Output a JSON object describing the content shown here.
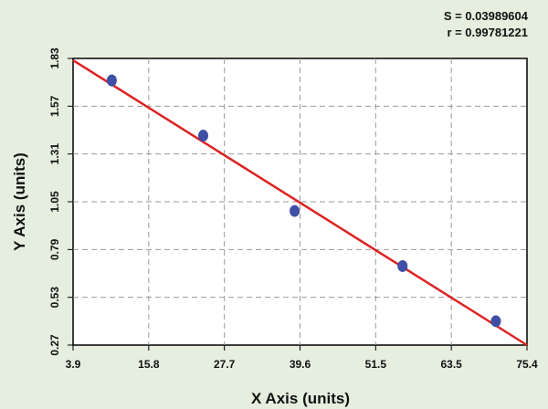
{
  "chart_data": {
    "type": "scatter",
    "xlabel": "X Axis (units)",
    "ylabel": "Y Axis (units)",
    "xlim": [
      3.9,
      75.4
    ],
    "ylim": [
      0.27,
      1.83
    ],
    "x_ticks": [
      "3.9",
      "15.8",
      "27.7",
      "39.6",
      "51.5",
      "63.5",
      "75.4"
    ],
    "y_ticks": [
      "0.27",
      "0.53",
      "0.79",
      "1.05",
      "1.31",
      "1.57",
      "1.83"
    ],
    "grid": true,
    "series": [
      {
        "points": [
          {
            "x": 10.0,
            "y": 1.71
          },
          {
            "x": 24.4,
            "y": 1.41
          },
          {
            "x": 38.8,
            "y": 1.0
          },
          {
            "x": 55.8,
            "y": 0.7
          },
          {
            "x": 70.5,
            "y": 0.4
          }
        ],
        "color": "#3f4fa6"
      }
    ],
    "fit_line": {
      "color": "#dd2222",
      "from": {
        "x": 3.9,
        "y": 1.82
      },
      "to": {
        "x": 75.4,
        "y": 0.27
      }
    },
    "stats": {
      "s": "S = 0.03989604",
      "r": "r = 0.99781221"
    }
  }
}
